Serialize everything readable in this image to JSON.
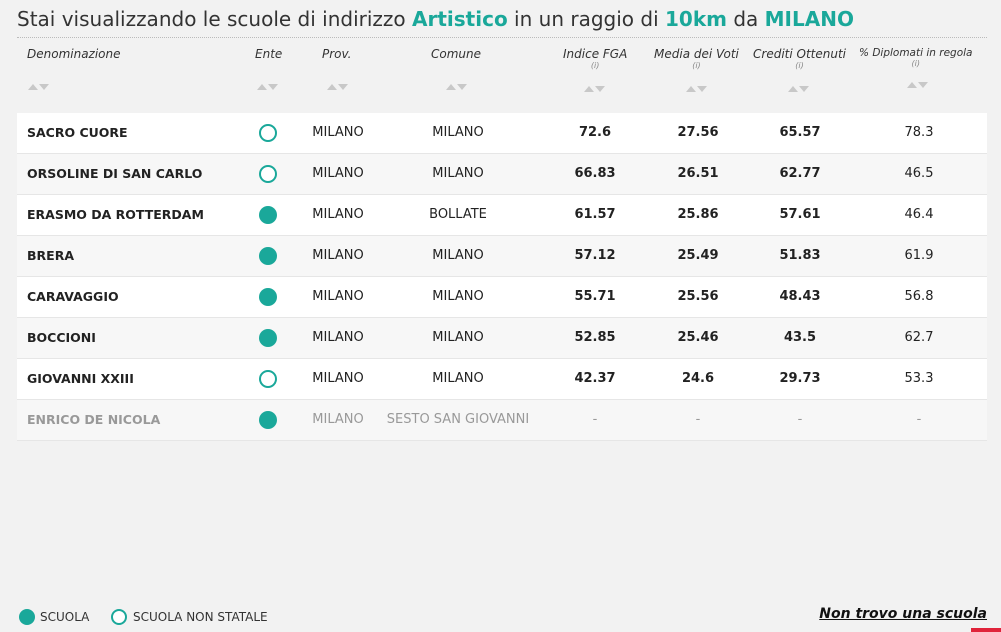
{
  "title": {
    "prefix": "Stai visualizzando le scuole di indirizzo ",
    "indirizzo": "Artistico",
    "middle": " in un raggio di ",
    "radius": "10km",
    "connector": " da ",
    "city": "MILANO"
  },
  "columns": {
    "denominazione": "Denominazione",
    "ente": "Ente",
    "prov": "Prov.",
    "comune": "Comune",
    "fga": "Indice FGA",
    "media": "Media dei Voti",
    "crediti": "Crediti Ottenuti",
    "diplomati": "% Diplomati in regola",
    "info": "(i)"
  },
  "rows": [
    {
      "name": "SACRO CUORE",
      "ente": "non-statale",
      "prov": "MILANO",
      "comune": "MILANO",
      "fga": "72.6",
      "media": "27.56",
      "crediti": "65.57",
      "diplomati": "78.3"
    },
    {
      "name": "ORSOLINE DI SAN CARLO",
      "ente": "non-statale",
      "prov": "MILANO",
      "comune": "MILANO",
      "fga": "66.83",
      "media": "26.51",
      "crediti": "62.77",
      "diplomati": "46.5"
    },
    {
      "name": "ERASMO DA ROTTERDAM",
      "ente": "statale",
      "prov": "MILANO",
      "comune": "BOLLATE",
      "fga": "61.57",
      "media": "25.86",
      "crediti": "57.61",
      "diplomati": "46.4"
    },
    {
      "name": "BRERA",
      "ente": "statale",
      "prov": "MILANO",
      "comune": "MILANO",
      "fga": "57.12",
      "media": "25.49",
      "crediti": "51.83",
      "diplomati": "61.9"
    },
    {
      "name": "CARAVAGGIO",
      "ente": "statale",
      "prov": "MILANO",
      "comune": "MILANO",
      "fga": "55.71",
      "media": "25.56",
      "crediti": "48.43",
      "diplomati": "56.8"
    },
    {
      "name": "BOCCIONI",
      "ente": "statale",
      "prov": "MILANO",
      "comune": "MILANO",
      "fga": "52.85",
      "media": "25.46",
      "crediti": "43.5",
      "diplomati": "62.7"
    },
    {
      "name": "GIOVANNI XXIII",
      "ente": "non-statale",
      "prov": "MILANO",
      "comune": "MILANO",
      "fga": "42.37",
      "media": "24.6",
      "crediti": "29.73",
      "diplomati": "53.3"
    },
    {
      "name": "ENRICO DE NICOLA",
      "ente": "statale",
      "prov": "MILANO",
      "comune": "SESTO SAN GIOVANNI",
      "fga": "-",
      "media": "-",
      "crediti": "-",
      "diplomati": "-",
      "disabled": true
    }
  ],
  "legend": {
    "scuola": "SCUOLA",
    "non_statale": "SCUOLA NON STATALE"
  },
  "not_found_link": "Non trovo una scuola",
  "colors": {
    "accent": "#1aa89a",
    "corner": "#e0233a"
  }
}
